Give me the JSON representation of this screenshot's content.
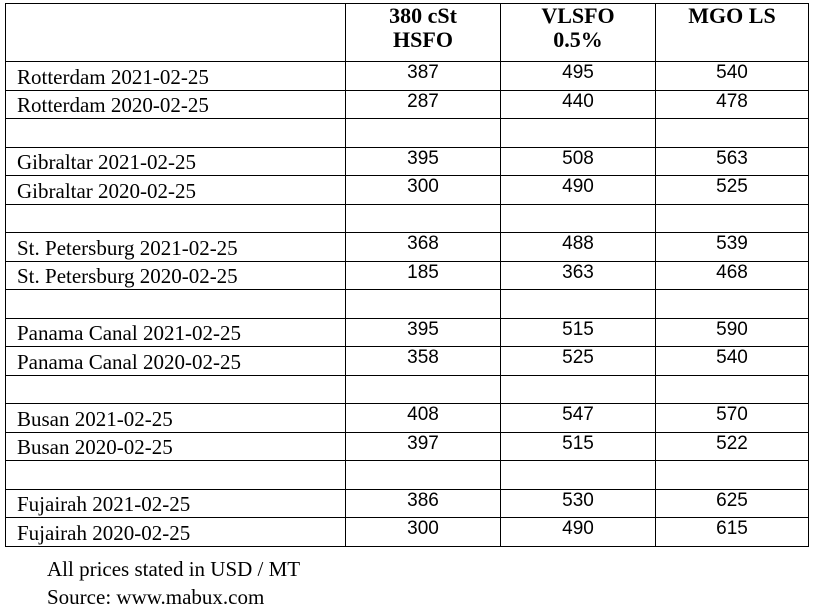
{
  "table": {
    "columns": [
      "380 cSt HSFO",
      "VLSFO 0.5%",
      "MGO LS"
    ],
    "groups": [
      [
        [
          "Rotterdam 2021-02-25",
          387,
          495,
          540
        ],
        [
          "Rotterdam 2020-02-25",
          287,
          440,
          478
        ]
      ],
      [
        [
          "Gibraltar 2021-02-25",
          395,
          508,
          563
        ],
        [
          "Gibraltar 2020-02-25",
          300,
          490,
          525
        ]
      ],
      [
        [
          "St. Petersburg 2021-02-25",
          368,
          488,
          539
        ],
        [
          "St. Petersburg 2020-02-25",
          185,
          363,
          468
        ]
      ],
      [
        [
          "Panama Canal 2021-02-25",
          395,
          515,
          590
        ],
        [
          "Panama Canal 2020-02-25",
          358,
          525,
          540
        ]
      ],
      [
        [
          "Busan 2021-02-25",
          408,
          547,
          570
        ],
        [
          "Busan 2020-02-25",
          397,
          515,
          522
        ]
      ],
      [
        [
          "Fujairah 2021-02-25",
          386,
          530,
          625
        ],
        [
          "Fujairah 2020-02-25",
          300,
          490,
          615
        ]
      ]
    ]
  },
  "notes": [
    "All prices stated in USD / MT",
    "Source: www.mabux.com"
  ]
}
